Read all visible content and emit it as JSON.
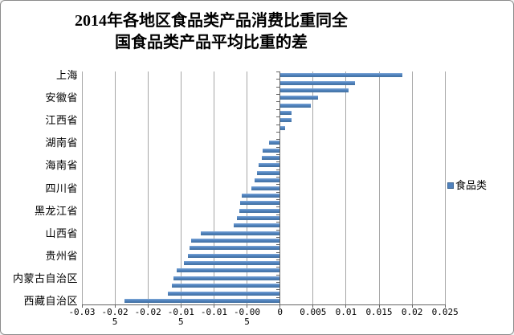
{
  "title": {
    "line1": "2014年各地区食品类产品消费比重同全",
    "line2": "国食品类产品平均比重的差"
  },
  "legend": {
    "items": [
      {
        "label": "食品类",
        "marker": "square-icon",
        "color": "#4f81bd"
      }
    ]
  },
  "colors": {
    "bar": "#4f81bd",
    "gridline": "#a6a6a6",
    "axis": "#636363",
    "figure_border": "#8c8c8c",
    "background": "#ffffff",
    "text": "#000000"
  },
  "chart_data": {
    "type": "bar",
    "orientation": "horizontal",
    "title": "2014年各地区食品类产品消费比重同全国食品类产品平均比重的差",
    "xlabel": "",
    "ylabel": "",
    "legend_entries": [
      "食品类"
    ],
    "legend_position": "right",
    "grid": true,
    "xlim": [
      -0.03,
      0.025
    ],
    "x_ticks": [
      -0.03,
      -0.025,
      -0.02,
      -0.015,
      -0.01,
      -0.005,
      0,
      0.005,
      0.01,
      0.015,
      0.02,
      0.025
    ],
    "x_tick_labels": [
      "-0.03",
      "-0.02\n5",
      "-0.02",
      "-0.01\n5",
      "-0.01",
      "-0.00\n5",
      "0",
      "0.005",
      "0.01",
      "0.015",
      "0.02",
      "0.025"
    ],
    "categories": [
      "上海",
      "",
      "",
      "安徽省",
      "",
      "",
      "江西省",
      "",
      "",
      "湖南省",
      "",
      "",
      "海南省",
      "",
      "",
      "四川省",
      "",
      "",
      "黑龙江省",
      "",
      "",
      "山西省",
      "",
      "",
      "贵州省",
      "",
      "",
      "内蒙古自治区",
      "",
      "",
      "西藏自治区"
    ],
    "series": [
      {
        "name": "食品类",
        "values": [
          0.0185,
          0.0114,
          0.0104,
          0.0057,
          0.0047,
          0.0018,
          0.0017,
          0.0008,
          0.0,
          -0.0017,
          -0.0026,
          -0.0028,
          -0.0033,
          -0.0035,
          -0.0039,
          -0.0044,
          -0.0058,
          -0.0061,
          -0.0062,
          -0.0065,
          -0.007,
          -0.012,
          -0.0135,
          -0.0137,
          -0.014,
          -0.0146,
          -0.0157,
          -0.0162,
          -0.0164,
          -0.017,
          -0.0236
        ]
      }
    ]
  }
}
